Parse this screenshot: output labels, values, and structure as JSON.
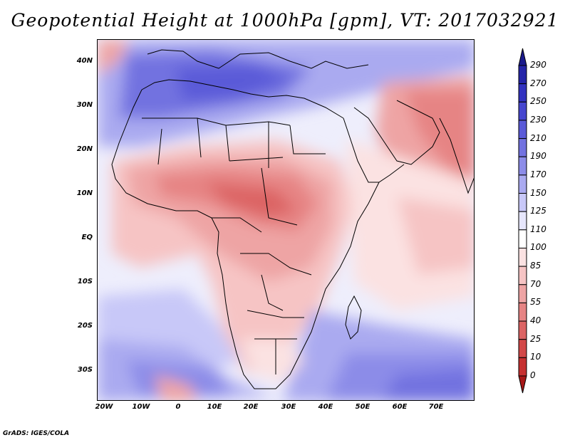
{
  "title": "Geopotential Height at 1000hPa [gpm], VT: 2017032921",
  "credit": "GrADS: IGES/COLA",
  "lat_labels": [
    "40N",
    "30N",
    "20N",
    "10N",
    "EQ",
    "10S",
    "20S",
    "30S"
  ],
  "lon_labels": [
    "20W",
    "10W",
    "0",
    "10E",
    "20E",
    "30E",
    "40E",
    "50E",
    "60E",
    "70E"
  ],
  "colorbar": {
    "levels": [
      "290",
      "270",
      "250",
      "230",
      "210",
      "190",
      "170",
      "150",
      "125",
      "110",
      "100",
      "85",
      "70",
      "55",
      "40",
      "25",
      "10",
      "0"
    ],
    "colors": [
      "#1a1a8c",
      "#2424a8",
      "#3232c0",
      "#4646cf",
      "#5a5ad8",
      "#7272e0",
      "#8c8ce8",
      "#aaaaf0",
      "#c8c8f8",
      "#e6e6fc",
      "#ffffff",
      "#fbe2e2",
      "#f6c4c4",
      "#eea4a4",
      "#e68484",
      "#dc6464",
      "#d24848",
      "#c63030",
      "#a81818"
    ]
  },
  "colors": {
    "positive_strong": "#dc6464",
    "positive_mid": "#eea4a4",
    "positive_weak": "#fbe2e2",
    "neutral": "#ffffff",
    "negative_weak": "#c8c8f8",
    "negative_mid": "#8c8ce8",
    "negative_strong": "#5a5ad8"
  }
}
